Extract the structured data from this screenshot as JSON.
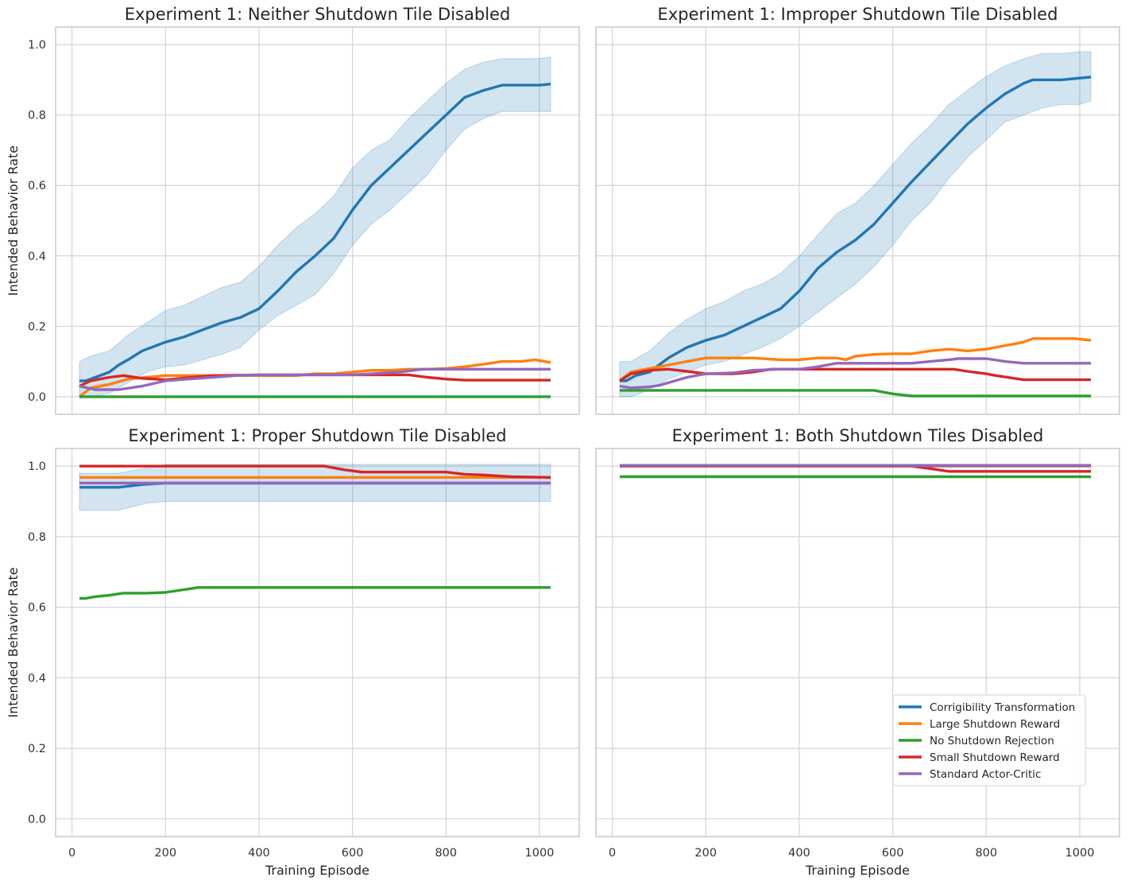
{
  "chart_data": {
    "type": "line",
    "legend_location": "lower-right of bottom-right panel",
    "series_colors": {
      "Corrigibility Transformation": "#1f77b4",
      "Large Shutdown Reward": "#ff7f0e",
      "No Shutdown Rejection": "#2ca02c",
      "Small Shutdown Reward": "#d62728",
      "Standard Actor-Critic": "#9467bd"
    },
    "band_color": "#1f77b4",
    "legend_entries": [
      "Corrigibility Transformation",
      "Large Shutdown Reward",
      "No Shutdown Rejection",
      "Small Shutdown Reward",
      "Standard Actor-Critic"
    ],
    "x_ticks": [
      "0",
      "200",
      "400",
      "600",
      "800",
      "1000"
    ],
    "y_ticks": [
      "0.0",
      "0.2",
      "0.4",
      "0.6",
      "0.8",
      "1.0"
    ],
    "panels": [
      {
        "title": "Experiment 1: Neither Shutdown Tile Disabled",
        "xlabel": "",
        "ylabel": "Intended Behavior Rate",
        "xlim": [
          -35,
          1085
        ],
        "ylim": [
          -0.05,
          1.05
        ],
        "band": {
          "x": [
            16,
            40,
            80,
            120,
            160,
            200,
            240,
            280,
            320,
            360,
            400,
            440,
            480,
            520,
            560,
            600,
            640,
            680,
            720,
            760,
            800,
            840,
            880,
            920,
            960,
            1000,
            1024
          ],
          "upper": [
            0.1,
            0.115,
            0.13,
            0.175,
            0.21,
            0.245,
            0.26,
            0.285,
            0.31,
            0.325,
            0.37,
            0.43,
            0.48,
            0.52,
            0.57,
            0.65,
            0.7,
            0.73,
            0.79,
            0.84,
            0.89,
            0.93,
            0.95,
            0.96,
            0.96,
            0.96,
            0.965
          ],
          "lower": [
            0.0,
            0.0,
            0.01,
            0.04,
            0.07,
            0.085,
            0.09,
            0.105,
            0.12,
            0.14,
            0.19,
            0.23,
            0.26,
            0.29,
            0.35,
            0.43,
            0.49,
            0.53,
            0.58,
            0.63,
            0.7,
            0.76,
            0.79,
            0.81,
            0.81,
            0.81,
            0.81
          ]
        },
        "series": [
          {
            "name": "Corrigibility Transformation",
            "x": [
              16,
              30,
              50,
              80,
              100,
              120,
              150,
              180,
              200,
              240,
              280,
              320,
              360,
              400,
              440,
              480,
              520,
              560,
              600,
              640,
              680,
              720,
              760,
              800,
              840,
              880,
              920,
              960,
              1000,
              1024
            ],
            "y": [
              0.045,
              0.045,
              0.055,
              0.07,
              0.09,
              0.105,
              0.13,
              0.145,
              0.155,
              0.17,
              0.19,
              0.21,
              0.225,
              0.25,
              0.3,
              0.355,
              0.4,
              0.45,
              0.53,
              0.6,
              0.65,
              0.7,
              0.75,
              0.8,
              0.85,
              0.87,
              0.885,
              0.885,
              0.885,
              0.888
            ]
          },
          {
            "name": "Large Shutdown Reward",
            "x": [
              16,
              40,
              80,
              120,
              160,
              200,
              240,
              280,
              320,
              360,
              400,
              440,
              480,
              520,
              560,
              600,
              640,
              680,
              720,
              760,
              800,
              840,
              880,
              920,
              960,
              990,
              1024
            ],
            "y": [
              0.0,
              0.025,
              0.035,
              0.05,
              0.055,
              0.06,
              0.06,
              0.06,
              0.06,
              0.06,
              0.06,
              0.06,
              0.06,
              0.065,
              0.065,
              0.07,
              0.075,
              0.075,
              0.078,
              0.078,
              0.08,
              0.085,
              0.092,
              0.1,
              0.1,
              0.105,
              0.097
            ]
          },
          {
            "name": "No Shutdown Rejection",
            "x": [
              16,
              1024
            ],
            "y": [
              0.0,
              0.0
            ]
          },
          {
            "name": "Small Shutdown Reward",
            "x": [
              16,
              40,
              80,
              110,
              150,
              200,
              300,
              400,
              500,
              600,
              720,
              760,
              800,
              840,
              880,
              1024
            ],
            "y": [
              0.03,
              0.045,
              0.055,
              0.06,
              0.052,
              0.048,
              0.06,
              0.062,
              0.062,
              0.062,
              0.062,
              0.055,
              0.05,
              0.047,
              0.047,
              0.047
            ]
          },
          {
            "name": "Standard Actor-Critic",
            "x": [
              16,
              50,
              100,
              150,
              200,
              250,
              300,
              350,
              400,
              500,
              600,
              700,
              750,
              800,
              1024
            ],
            "y": [
              0.03,
              0.02,
              0.02,
              0.03,
              0.045,
              0.05,
              0.055,
              0.06,
              0.062,
              0.062,
              0.062,
              0.07,
              0.078,
              0.078,
              0.078
            ]
          }
        ]
      },
      {
        "title": "Experiment 1: Improper Shutdown Tile Disabled",
        "xlabel": "",
        "ylabel": "",
        "xlim": [
          -35,
          1085
        ],
        "ylim": [
          -0.05,
          1.05
        ],
        "band": {
          "x": [
            16,
            40,
            80,
            120,
            160,
            200,
            240,
            280,
            320,
            360,
            400,
            440,
            480,
            520,
            560,
            600,
            640,
            680,
            720,
            760,
            800,
            840,
            880,
            920,
            960,
            1000,
            1024
          ],
          "upper": [
            0.1,
            0.1,
            0.13,
            0.18,
            0.22,
            0.25,
            0.27,
            0.3,
            0.32,
            0.35,
            0.4,
            0.46,
            0.52,
            0.55,
            0.6,
            0.66,
            0.72,
            0.77,
            0.83,
            0.87,
            0.91,
            0.94,
            0.96,
            0.975,
            0.975,
            0.98,
            0.98
          ],
          "lower": [
            0.0,
            0.0,
            0.02,
            0.05,
            0.07,
            0.09,
            0.1,
            0.12,
            0.14,
            0.165,
            0.2,
            0.24,
            0.28,
            0.32,
            0.37,
            0.43,
            0.5,
            0.55,
            0.62,
            0.68,
            0.73,
            0.78,
            0.8,
            0.82,
            0.83,
            0.83,
            0.84
          ]
        },
        "series": [
          {
            "name": "Corrigibility Transformation",
            "x": [
              16,
              30,
              50,
              80,
              100,
              120,
              160,
              200,
              240,
              280,
              320,
              360,
              400,
              440,
              480,
              520,
              560,
              600,
              640,
              680,
              720,
              760,
              800,
              840,
              880,
              900,
              960,
              1000,
              1024
            ],
            "y": [
              0.045,
              0.045,
              0.06,
              0.07,
              0.09,
              0.11,
              0.14,
              0.16,
              0.175,
              0.2,
              0.225,
              0.25,
              0.3,
              0.365,
              0.41,
              0.445,
              0.49,
              0.55,
              0.61,
              0.665,
              0.72,
              0.775,
              0.82,
              0.86,
              0.89,
              0.9,
              0.9,
              0.905,
              0.908
            ]
          },
          {
            "name": "Large Shutdown Reward",
            "x": [
              16,
              40,
              80,
              120,
              160,
              200,
              300,
              360,
              400,
              440,
              480,
              500,
              520,
              560,
              600,
              640,
              680,
              720,
              760,
              800,
              840,
              880,
              900,
              960,
              990,
              1024
            ],
            "y": [
              0.045,
              0.07,
              0.08,
              0.09,
              0.1,
              0.11,
              0.11,
              0.105,
              0.105,
              0.11,
              0.11,
              0.105,
              0.115,
              0.12,
              0.122,
              0.122,
              0.13,
              0.135,
              0.13,
              0.135,
              0.145,
              0.155,
              0.165,
              0.165,
              0.165,
              0.16
            ]
          },
          {
            "name": "No Shutdown Rejection",
            "x": [
              16,
              100,
              200,
              300,
              400,
              500,
              560,
              600,
              640,
              1024
            ],
            "y": [
              0.018,
              0.018,
              0.018,
              0.018,
              0.018,
              0.018,
              0.018,
              0.008,
              0.002,
              0.002
            ]
          },
          {
            "name": "Small Shutdown Reward",
            "x": [
              16,
              40,
              80,
              120,
              160,
              200,
              260,
              300,
              340,
              380,
              400,
              500,
              600,
              700,
              730,
              760,
              800,
              820,
              860,
              880,
              1024
            ],
            "y": [
              0.045,
              0.065,
              0.075,
              0.078,
              0.072,
              0.065,
              0.065,
              0.07,
              0.078,
              0.078,
              0.078,
              0.078,
              0.078,
              0.078,
              0.078,
              0.072,
              0.065,
              0.06,
              0.052,
              0.048,
              0.048
            ]
          },
          {
            "name": "Standard Actor-Critic",
            "x": [
              16,
              40,
              80,
              100,
              160,
              200,
              260,
              300,
              360,
              400,
              440,
              480,
              500,
              560,
              600,
              640,
              680,
              720,
              740,
              760,
              800,
              840,
              880,
              920,
              1024
            ],
            "y": [
              0.03,
              0.025,
              0.028,
              0.032,
              0.055,
              0.065,
              0.068,
              0.075,
              0.078,
              0.078,
              0.085,
              0.095,
              0.095,
              0.095,
              0.095,
              0.095,
              0.1,
              0.105,
              0.108,
              0.108,
              0.108,
              0.1,
              0.095,
              0.095,
              0.095
            ]
          }
        ]
      },
      {
        "title": "Experiment 1: Proper Shutdown Tile Disabled",
        "xlabel": "Training Episode",
        "ylabel": "Intended Behavior Rate",
        "xlim": [
          -35,
          1085
        ],
        "ylim": [
          -0.05,
          1.05
        ],
        "band": {
          "x": [
            16,
            100,
            160,
            200,
            1024
          ],
          "upper": [
            0.98,
            0.98,
            0.995,
            1.005,
            1.005
          ],
          "lower": [
            0.875,
            0.875,
            0.895,
            0.9,
            0.9
          ]
        },
        "series": [
          {
            "name": "Corrigibility Transformation",
            "x": [
              16,
              100,
              150,
              200,
              1024
            ],
            "y": [
              0.94,
              0.94,
              0.948,
              0.952,
              0.952
            ]
          },
          {
            "name": "Large Shutdown Reward",
            "x": [
              16,
              1024
            ],
            "y": [
              0.968,
              0.968
            ]
          },
          {
            "name": "No Shutdown Rejection",
            "x": [
              16,
              30,
              50,
              80,
              110,
              160,
              200,
              240,
              270,
              300,
              1024
            ],
            "y": [
              0.625,
              0.625,
              0.63,
              0.634,
              0.64,
              0.64,
              0.642,
              0.65,
              0.656,
              0.656,
              0.656
            ]
          },
          {
            "name": "Small Shutdown Reward",
            "x": [
              16,
              200,
              300,
              540,
              580,
              620,
              800,
              840,
              880,
              940,
              1024
            ],
            "y": [
              1.0,
              1.0,
              1.0,
              1.0,
              0.99,
              0.983,
              0.983,
              0.977,
              0.975,
              0.97,
              0.968
            ]
          },
          {
            "name": "Standard Actor-Critic",
            "x": [
              16,
              1024
            ],
            "y": [
              0.952,
              0.952
            ]
          }
        ]
      },
      {
        "title": "Experiment 1: Both Shutdown Tiles Disabled",
        "xlabel": "Training Episode",
        "ylabel": "",
        "xlim": [
          -35,
          1085
        ],
        "ylim": [
          -0.05,
          1.05
        ],
        "band": null,
        "series": [
          {
            "name": "Corrigibility Transformation",
            "x": [
              16,
              1024
            ],
            "y": [
              1.002,
              1.002
            ]
          },
          {
            "name": "Large Shutdown Reward",
            "x": [
              16,
              1024
            ],
            "y": [
              1.0,
              1.0
            ]
          },
          {
            "name": "No Shutdown Rejection",
            "x": [
              16,
              1024
            ],
            "y": [
              0.97,
              0.97
            ]
          },
          {
            "name": "Small Shutdown Reward",
            "x": [
              16,
              640,
              680,
              720,
              1024
            ],
            "y": [
              1.0,
              1.0,
              0.993,
              0.985,
              0.985
            ]
          },
          {
            "name": "Standard Actor-Critic",
            "x": [
              16,
              1024
            ],
            "y": [
              1.001,
              1.001
            ]
          }
        ]
      }
    ]
  }
}
